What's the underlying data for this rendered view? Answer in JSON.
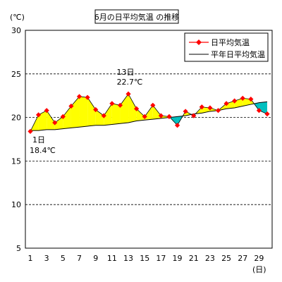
{
  "chart_data": {
    "type": "line",
    "title": "6月の日平均気温 の推移",
    "y_unit_label": "(℃)",
    "x_unit_label": "(日)",
    "ylim": [
      5,
      30
    ],
    "xlim": [
      1,
      30
    ],
    "y_ticks": [
      5,
      10,
      15,
      20,
      25,
      30
    ],
    "x_ticks": [
      1,
      3,
      5,
      7,
      9,
      11,
      13,
      15,
      17,
      19,
      21,
      23,
      25,
      27,
      29
    ],
    "grid": "horizontal-dashed",
    "legend_position": "top-right",
    "x": [
      1,
      2,
      3,
      4,
      5,
      6,
      7,
      8,
      9,
      10,
      11,
      12,
      13,
      14,
      15,
      16,
      17,
      18,
      19,
      20,
      21,
      22,
      23,
      24,
      25,
      26,
      27,
      28,
      29,
      30
    ],
    "series": [
      {
        "name": "日平均気温",
        "style": "line-with-diamond-markers",
        "color": "#ff0000",
        "values": [
          18.4,
          20.3,
          20.8,
          19.4,
          20.1,
          21.3,
          22.4,
          22.3,
          20.9,
          20.2,
          21.6,
          21.4,
          22.7,
          21.0,
          20.1,
          21.4,
          20.2,
          20.1,
          19.1,
          20.7,
          20.2,
          21.2,
          21.1,
          20.8,
          21.6,
          21.9,
          22.2,
          22.1,
          20.8,
          20.4
        ]
      },
      {
        "name": "平年日平均気温",
        "style": "thin-line",
        "color": "#000000",
        "values": [
          18.5,
          18.5,
          18.6,
          18.6,
          18.7,
          18.8,
          18.9,
          19.0,
          19.1,
          19.1,
          19.2,
          19.3,
          19.4,
          19.6,
          19.7,
          19.8,
          19.9,
          20.0,
          20.1,
          20.2,
          20.4,
          20.5,
          20.7,
          20.8,
          21.0,
          21.1,
          21.3,
          21.5,
          21.7,
          21.8
        ]
      }
    ],
    "fill_above_normal_color": "#ffff00",
    "fill_below_normal_color": "#00c0c0",
    "annotations": [
      {
        "day": 13,
        "label_day": "13日",
        "label_temp": "22.7℃"
      },
      {
        "day": 1,
        "label_day": "1日",
        "label_temp": "18.4℃"
      }
    ]
  }
}
